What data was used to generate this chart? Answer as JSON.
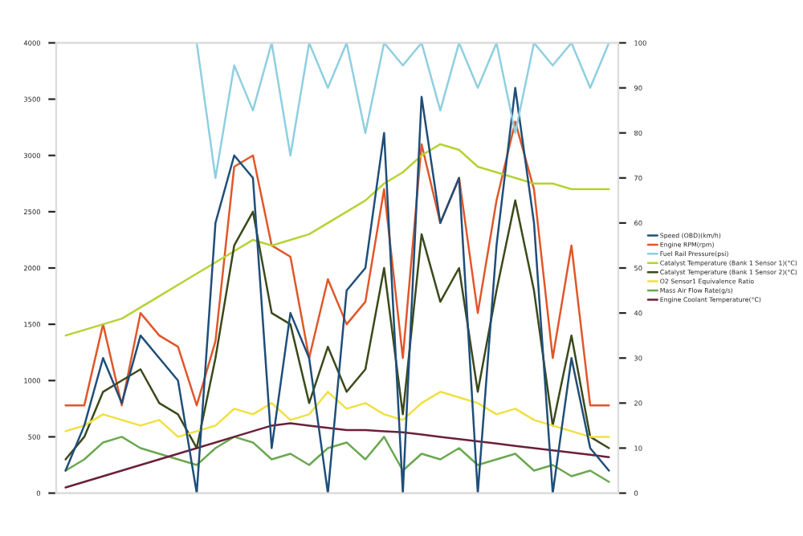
{
  "chart_data": {
    "type": "line",
    "categories": [
      null,
      null,
      null,
      null,
      null,
      null,
      null,
      null,
      null,
      null,
      null,
      null,
      null,
      null,
      null,
      null,
      null,
      null,
      null,
      null,
      null,
      null,
      null,
      null,
      null,
      null,
      null,
      null,
      null,
      null
    ],
    "ylim": [
      0,
      4000
    ],
    "yticks": [
      0,
      500,
      1000,
      1500,
      2000,
      2500,
      3000,
      3500,
      4000
    ],
    "y2lim": [
      0,
      100
    ],
    "y2ticks": [
      0,
      10,
      20,
      30,
      40,
      50,
      60,
      70,
      80,
      90,
      100
    ],
    "legend": "right",
    "grid": false,
    "series": [
      {
        "name": "Speed (OBD)(km/h)",
        "color": "#1f4e79",
        "axis": "y2",
        "values": [
          5,
          15,
          30,
          20,
          35,
          30,
          25,
          0,
          60,
          75,
          70,
          10,
          40,
          30,
          0,
          45,
          50,
          80,
          0,
          88,
          60,
          70,
          0,
          55,
          90,
          60,
          0,
          30,
          10,
          5
        ]
      },
      {
        "name": "Engine RPM(rpm)",
        "color": "#e0572a",
        "values": [
          780,
          780,
          1500,
          780,
          1600,
          1400,
          1300,
          780,
          1350,
          2900,
          3000,
          2200,
          2100,
          1200,
          1900,
          1500,
          1700,
          2700,
          1200,
          3100,
          2400,
          2800,
          1600,
          2600,
          3300,
          2700,
          1200,
          2200,
          780,
          780
        ]
      },
      {
        "name": "Fuel Rail Pressure(psi)",
        "color": "#8fcfe0",
        "axis": "y2",
        "values": [
          null,
          null,
          null,
          null,
          null,
          null,
          null,
          100,
          70,
          95,
          85,
          100,
          75,
          100,
          90,
          100,
          80,
          100,
          95,
          100,
          85,
          100,
          90,
          100,
          80,
          100,
          95,
          100,
          90,
          100
        ]
      },
      {
        "name": "Catalyst Temperature (Bank 1 Sensor 1)(°C)",
        "color": "#b5d334",
        "values": [
          1400,
          1450,
          1500,
          1550,
          1650,
          1750,
          1850,
          1950,
          2050,
          2150,
          2250,
          2200,
          2250,
          2300,
          2400,
          2500,
          2600,
          2750,
          2850,
          3000,
          3100,
          3050,
          2900,
          2850,
          2800,
          2750,
          2750,
          2700,
          2700,
          2700
        ]
      },
      {
        "name": "Catalyst Temperature (Bank 1 Sensor 2)(°C)",
        "color": "#3a4a1a",
        "values": [
          300,
          500,
          900,
          1000,
          1100,
          800,
          700,
          400,
          1200,
          2200,
          2500,
          1600,
          1500,
          800,
          1300,
          900,
          1100,
          2000,
          700,
          2300,
          1700,
          2000,
          900,
          1800,
          2600,
          1800,
          600,
          1400,
          500,
          400
        ]
      },
      {
        "name": "O2 Sensor1 Equivalence Ratio",
        "color": "#f0e040",
        "values": [
          550,
          600,
          700,
          650,
          600,
          650,
          500,
          550,
          600,
          750,
          700,
          800,
          650,
          700,
          900,
          750,
          800,
          700,
          650,
          800,
          900,
          850,
          800,
          700,
          750,
          650,
          600,
          550,
          500,
          500
        ]
      },
      {
        "name": "Mass Air Flow Rate(g/s)",
        "color": "#6aa84f",
        "values": [
          200,
          300,
          450,
          500,
          400,
          350,
          300,
          250,
          400,
          500,
          450,
          300,
          350,
          250,
          400,
          450,
          300,
          500,
          200,
          350,
          300,
          400,
          250,
          300,
          350,
          200,
          250,
          150,
          200,
          100
        ]
      },
      {
        "name": "Engine Coolant Temperature(°C)",
        "color": "#6b1f3a",
        "values": [
          50,
          100,
          150,
          200,
          250,
          300,
          350,
          400,
          450,
          500,
          550,
          600,
          620,
          600,
          580,
          560,
          560,
          550,
          540,
          520,
          500,
          480,
          460,
          440,
          420,
          400,
          380,
          360,
          340,
          320
        ]
      }
    ]
  }
}
